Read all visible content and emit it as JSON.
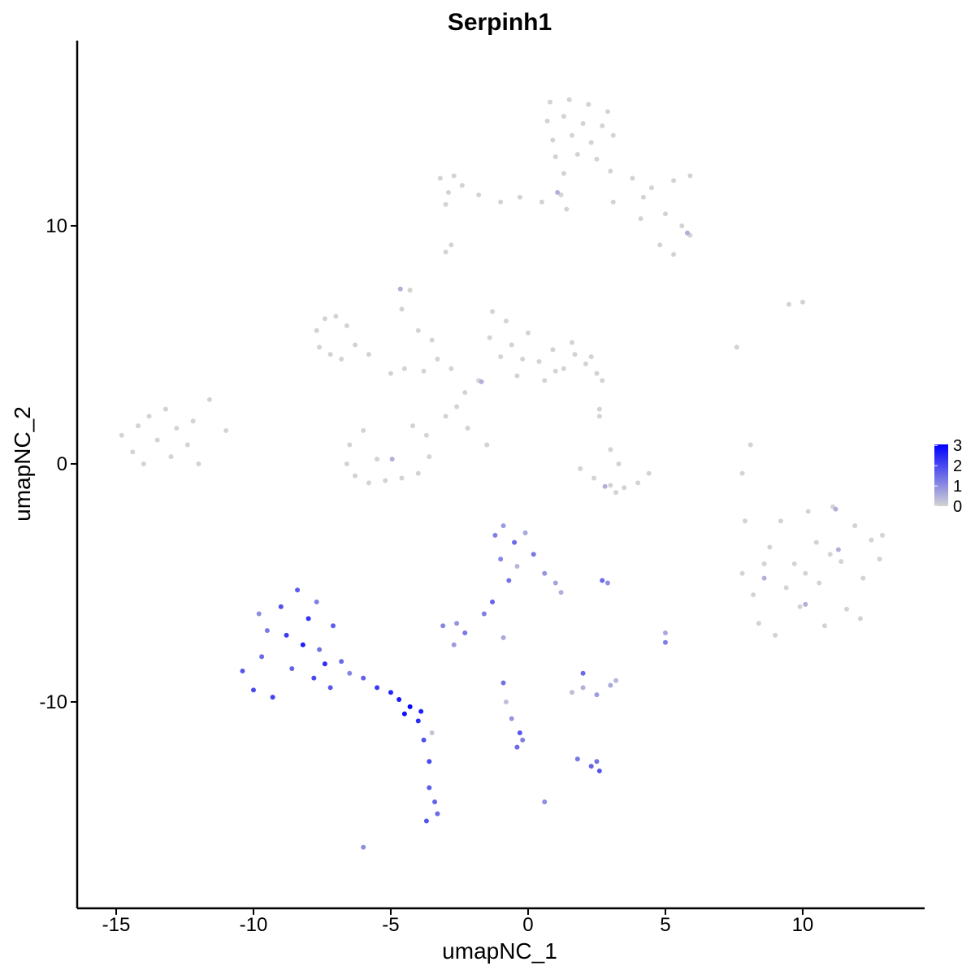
{
  "chart_data": {
    "type": "scatter",
    "title": "Serpinh1",
    "x_label": "umapNC_1",
    "y_label": "umapNC_2",
    "xlim": [
      -16.42,
      14.44
    ],
    "ylim": [
      -18.67,
      17.78
    ],
    "xticks": [
      -15,
      -10,
      -5,
      0,
      5,
      10
    ],
    "yticks": [
      -10,
      0,
      10
    ],
    "grid": false,
    "low_color": "#d3d3d3",
    "high_color": "#0000ff",
    "colorlim": [
      0,
      3.05
    ],
    "colorticks": [
      0,
      1,
      2,
      3
    ],
    "legend": "right",
    "x": [
      0.8,
      1.5,
      2.2,
      2.9,
      0.7,
      1.3,
      2.0,
      2.7,
      3.1,
      0.9,
      1.6,
      2.3,
      1.0,
      1.8,
      2.5,
      1.3,
      1.2,
      1.4,
      3.0,
      3.8,
      4.5,
      5.3,
      5.9,
      4.2,
      5.0,
      5.6,
      5.9,
      4.8,
      5.3,
      4.1,
      -3.2,
      -2.7,
      -2.9,
      -2.4,
      -1.8,
      -1.0,
      -0.3,
      0.5,
      -3.0,
      3.1,
      -3.0,
      -2.8,
      1.07,
      5.8,
      -14.8,
      -14.4,
      -14.2,
      -13.8,
      -13.5,
      -13.2,
      -13.0,
      -12.8,
      -12.4,
      -12.2,
      -14.0,
      -12.0,
      -11.6,
      -11.0,
      -7.7,
      -7.4,
      -7.0,
      -6.6,
      -7.6,
      -7.2,
      -6.8,
      -6.3,
      -5.8,
      -5.0,
      -4.5,
      -3.8,
      -3.3,
      -4.3,
      -4.6,
      -4.0,
      -3.5,
      -2.8,
      -2.3,
      -2.6,
      -3.0,
      -2.2,
      -1.5,
      -1.8,
      -4.65,
      -1.3,
      -0.8,
      -1.4,
      -0.6,
      0.0,
      -1.0,
      0.4,
      0.9,
      1.3,
      1.7,
      2.1,
      2.5,
      2.7,
      2.3,
      -0.4,
      0.6,
      1.0,
      2.6,
      1.6,
      -0.2,
      -1.7,
      -6.5,
      -6.6,
      -6.3,
      -5.8,
      -5.2,
      -4.6,
      -4.0,
      -3.6,
      -3.7,
      -4.2,
      -5.5,
      -6.0,
      -1.5,
      -4.95,
      1.9,
      2.4,
      3.0,
      3.5,
      4.0,
      4.4,
      3.2,
      3.0,
      3.3,
      2.6,
      2.8,
      7.6,
      9.5,
      10.0,
      7.8,
      8.1,
      7.9,
      7.8,
      8.2,
      8.4,
      8.8,
      9.2,
      9.0,
      9.7,
      9.9,
      10.2,
      10.5,
      10.6,
      10.8,
      11.1,
      11.4,
      11.6,
      11.9,
      12.2,
      12.5,
      12.8,
      12.1,
      9.4,
      10.1,
      11.0,
      8.6,
      12.9,
      11.2,
      8.6,
      10.1,
      11.3,
      -10.4,
      -10.0,
      -9.7,
      -9.3,
      -9.0,
      -8.8,
      -8.6,
      -8.4,
      -8.0,
      -7.8,
      -7.6,
      -7.4,
      -7.2,
      -9.5,
      -8.2,
      -7.7,
      -6.8,
      -6.5,
      -6.0,
      -5.5,
      -5.0,
      -4.7,
      -4.3,
      -3.9,
      -4.5,
      -4.0,
      -3.8,
      -3.6,
      -3.6,
      -3.4,
      -3.7,
      -3.3,
      -3.5,
      -9.8,
      -7.1,
      -6.0,
      -1.2,
      -0.9,
      -0.5,
      -0.1,
      -1.0,
      -0.4,
      0.2,
      0.6,
      1.0,
      1.2,
      -0.7,
      -1.3,
      -1.6,
      -3.1,
      -2.6,
      -2.3,
      -2.7,
      -0.9,
      -0.9,
      -0.8,
      -0.6,
      -0.3,
      -0.4,
      -0.2,
      1.6,
      2.0,
      2.5,
      3.0,
      3.2,
      2.0,
      1.8,
      2.3,
      2.6,
      2.5,
      5.0,
      5.0,
      2.7,
      2.9,
      0.6
    ],
    "values": [
      15.2,
      15.3,
      15.1,
      14.8,
      14.4,
      14.6,
      14.3,
      14.2,
      13.8,
      13.6,
      13.8,
      13.5,
      12.9,
      13.0,
      12.8,
      12.2,
      11.3,
      10.7,
      12.3,
      12.0,
      11.6,
      11.9,
      12.1,
      11.2,
      10.5,
      10.0,
      9.6,
      9.2,
      8.8,
      10.3,
      12.0,
      12.1,
      11.4,
      11.7,
      11.3,
      11.0,
      11.2,
      11.0,
      10.9,
      11.0,
      8.9,
      9.2,
      11.4,
      9.7,
      1.2,
      0.5,
      1.6,
      2.0,
      1.0,
      2.3,
      0.3,
      1.5,
      0.8,
      1.8,
      0.0,
      0.0,
      2.7,
      1.4,
      5.6,
      6.1,
      6.2,
      5.8,
      4.9,
      4.6,
      4.4,
      5.0,
      4.6,
      3.8,
      4.0,
      3.9,
      4.4,
      7.3,
      6.5,
      5.6,
      5.2,
      4.0,
      3.0,
      2.4,
      2.0,
      1.5,
      0.8,
      3.5,
      7.35,
      6.4,
      6.0,
      5.3,
      5.0,
      5.5,
      4.5,
      4.3,
      4.8,
      4.0,
      4.6,
      4.2,
      3.8,
      3.5,
      4.5,
      3.7,
      3.5,
      3.9,
      2.3,
      5.1,
      4.4,
      3.45,
      0.8,
      0.0,
      -0.5,
      -0.8,
      -0.7,
      -0.6,
      -0.4,
      0.3,
      1.2,
      1.6,
      0.2,
      1.4,
      0.8,
      0.2,
      -0.2,
      -0.6,
      -0.9,
      -1.0,
      -0.8,
      -0.4,
      -1.2,
      0.6,
      0.0,
      2.0,
      -0.95,
      4.9,
      6.7,
      6.8,
      -0.4,
      0.8,
      -2.4,
      -4.6,
      -5.5,
      -6.7,
      -3.5,
      -2.4,
      -7.2,
      -4.2,
      -6.0,
      -2.0,
      -3.3,
      -5.0,
      -6.8,
      -1.8,
      -4.1,
      -6.1,
      -2.6,
      -4.8,
      -3.2,
      -4.0,
      -6.5,
      -5.2,
      -4.6,
      -3.8,
      -4.2,
      -3.0,
      -1.9,
      -4.8,
      -5.9,
      -3.6,
      -8.7,
      -9.5,
      -8.1,
      -9.8,
      -6.0,
      -7.2,
      -8.6,
      -5.3,
      -6.5,
      -9.0,
      -7.8,
      -8.4,
      -9.4,
      -7.0,
      -7.6,
      -5.8,
      -8.3,
      -8.8,
      -9.0,
      -9.4,
      -9.6,
      -9.9,
      -10.2,
      -10.4,
      -10.5,
      -10.8,
      -11.6,
      -12.5,
      -13.6,
      -14.2,
      -15.0,
      -14.7,
      -11.3,
      -6.3,
      -6.8,
      -16.1,
      -3.0,
      -2.6,
      -3.3,
      -2.9,
      -4.0,
      -4.3,
      -3.8,
      -4.6,
      -5.0,
      -5.4,
      -4.9,
      -5.8,
      -6.3,
      -6.8,
      -6.7,
      -7.1,
      -7.6,
      -7.3,
      -9.2,
      -10.0,
      -10.7,
      -11.3,
      -11.9,
      -11.6,
      -9.6,
      -9.4,
      -9.7,
      -9.3,
      -9.1,
      -8.8,
      -12.4,
      -12.7,
      -12.9,
      -12.5,
      -7.5,
      -7.1,
      -4.9,
      -5.0,
      -14.2
    ],
    "expression": [
      0,
      0,
      0,
      0,
      0,
      0,
      0,
      0,
      0,
      0,
      0,
      0,
      0,
      0,
      0,
      0,
      0,
      0,
      0,
      0,
      0,
      0,
      0,
      0,
      0,
      0,
      0,
      0,
      0,
      0,
      0,
      0,
      0,
      0,
      0,
      0,
      0,
      0,
      0,
      0,
      0,
      0,
      0.5,
      0.5,
      0,
      0,
      0,
      0,
      0,
      0,
      0,
      0,
      0,
      0,
      0,
      0,
      0,
      0,
      0,
      0,
      0,
      0,
      0,
      0,
      0,
      0,
      0,
      0,
      0,
      0,
      0,
      0,
      0,
      0,
      0,
      0,
      0,
      0,
      0,
      0,
      0,
      0,
      0.5,
      0,
      0,
      0,
      0,
      0,
      0,
      0,
      0,
      0,
      0,
      0,
      0,
      0,
      0,
      0,
      0,
      0,
      0,
      0,
      0,
      0.5,
      0,
      0,
      0,
      0,
      0,
      0,
      0,
      0,
      0,
      0,
      0,
      0,
      0,
      0.5,
      0,
      0,
      0,
      0,
      0,
      0,
      0,
      0,
      0,
      0,
      0.5,
      0,
      0,
      0,
      0,
      0,
      0,
      0,
      0,
      0,
      0,
      0,
      0,
      0,
      0,
      0,
      0,
      0,
      0,
      0,
      0,
      0,
      0,
      0,
      0,
      0,
      0,
      0,
      0,
      0,
      0,
      0,
      0.5,
      0.5,
      0.5,
      0.5,
      1.8,
      2.0,
      1.5,
      2.1,
      1.9,
      2.2,
      1.6,
      1.7,
      2.3,
      2.0,
      1.4,
      2.4,
      1.8,
      1.3,
      2.6,
      1.2,
      1.5,
      1.1,
      1.6,
      2.2,
      2.5,
      2.7,
      3.0,
      2.6,
      2.8,
      2.4,
      1.9,
      2.0,
      1.7,
      1.6,
      1.8,
      1.5,
      0.2,
      1.0,
      1.7,
      1.0,
      1.2,
      0.8,
      1.5,
      0.6,
      1.1,
      0.4,
      1.3,
      0.9,
      0.7,
      0.5,
      1.4,
      1.6,
      1.2,
      1.1,
      0.9,
      1.3,
      0.8,
      0.6,
      1.4,
      0.3,
      0.9,
      1.8,
      1.5,
      1.2,
      0.3,
      0.5,
      0.8,
      0.6,
      0.4,
      1.5,
      1.3,
      1.6,
      1.8,
      1.4,
      1.2,
      0.6,
      1.5,
      1.0,
      1.0
    ]
  }
}
